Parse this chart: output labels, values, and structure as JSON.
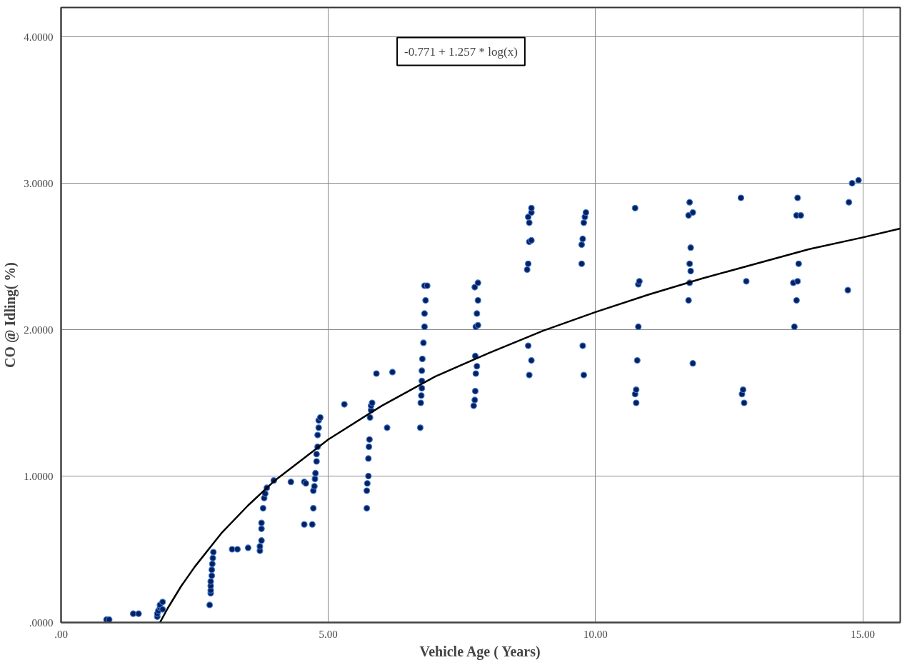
{
  "chart_data": {
    "type": "scatter",
    "xlabel": "Vehicle Age ( Years)",
    "ylabel": "CO @ Idling( %)",
    "annotations": [
      "-0.771 + 1.257 * log(x)"
    ],
    "xlim": [
      0,
      15.7
    ],
    "ylim": [
      0,
      4.2
    ],
    "xticks": [
      {
        "value": 0,
        "label": ".00"
      },
      {
        "value": 5,
        "label": "5.00"
      },
      {
        "value": 10,
        "label": "10.00"
      },
      {
        "value": 15,
        "label": "15.00"
      }
    ],
    "yticks": [
      {
        "value": 0,
        "label": ".0000"
      },
      {
        "value": 1,
        "label": "1.0000"
      },
      {
        "value": 2,
        "label": "2.0000"
      },
      {
        "value": 3,
        "label": "3.0000"
      },
      {
        "value": 4,
        "label": "4.0000"
      }
    ],
    "grid": true,
    "marker": "circle",
    "series": [
      {
        "color": "#0a1f5c",
        "x": [
          0.85,
          0.9,
          1.35,
          1.45,
          1.8,
          1.8,
          1.82,
          1.85,
          1.85,
          1.9,
          1.9,
          2.78,
          2.8,
          2.8,
          2.8,
          2.8,
          2.82,
          2.82,
          2.83,
          2.84,
          2.85,
          3.2,
          3.3,
          3.5,
          3.72,
          3.72,
          3.75,
          3.75,
          3.75,
          3.78,
          3.8,
          3.82,
          3.85,
          3.98,
          4.3,
          4.55,
          4.58,
          4.55,
          4.7,
          4.72,
          4.72,
          4.74,
          4.75,
          4.76,
          4.78,
          4.78,
          4.8,
          4.8,
          4.82,
          4.82,
          4.85,
          5.3,
          5.72,
          5.72,
          5.73,
          5.75,
          5.75,
          5.76,
          5.77,
          5.78,
          5.8,
          5.8,
          5.82,
          5.9,
          6.1,
          6.2,
          6.72,
          6.73,
          6.74,
          6.75,
          6.75,
          6.75,
          6.76,
          6.78,
          6.8,
          6.8,
          6.82,
          6.8,
          6.85,
          7.72,
          7.74,
          7.75,
          7.76,
          7.78,
          7.75,
          7.76,
          7.8,
          7.78,
          7.8,
          7.74,
          7.8,
          8.76,
          8.8,
          8.74,
          8.72,
          8.74,
          8.76,
          8.8,
          8.76,
          8.74,
          8.8,
          8.8,
          9.78,
          9.76,
          9.74,
          9.74,
          9.76,
          9.78,
          9.8,
          9.82,
          10.76,
          10.74,
          10.76,
          10.78,
          10.8,
          10.8,
          10.82,
          10.74,
          11.82,
          11.74,
          11.76,
          11.78,
          11.76,
          11.78,
          11.74,
          11.82,
          11.76,
          12.78,
          12.74,
          12.76,
          12.82,
          12.72,
          13.72,
          13.76,
          13.7,
          13.78,
          13.8,
          13.76,
          13.84,
          13.78,
          14.72,
          14.74,
          14.8,
          14.92
        ],
        "values": [
          0.02,
          0.02,
          0.06,
          0.06,
          0.04,
          0.06,
          0.08,
          0.1,
          0.12,
          0.14,
          0.09,
          0.12,
          0.2,
          0.22,
          0.25,
          0.28,
          0.32,
          0.36,
          0.4,
          0.44,
          0.48,
          0.5,
          0.5,
          0.51,
          0.49,
          0.52,
          0.56,
          0.64,
          0.68,
          0.78,
          0.85,
          0.88,
          0.92,
          0.97,
          0.96,
          0.96,
          0.95,
          0.67,
          0.67,
          0.78,
          0.9,
          0.93,
          0.98,
          1.02,
          1.1,
          1.15,
          1.2,
          1.28,
          1.33,
          1.38,
          1.4,
          1.49,
          0.78,
          0.9,
          0.95,
          1.0,
          1.12,
          1.2,
          1.25,
          1.4,
          1.45,
          1.48,
          1.5,
          1.7,
          1.33,
          1.71,
          1.33,
          1.5,
          1.55,
          1.6,
          1.65,
          1.72,
          1.8,
          1.91,
          2.02,
          2.11,
          2.2,
          2.3,
          2.3,
          1.48,
          1.52,
          1.58,
          1.7,
          1.75,
          1.82,
          2.02,
          2.03,
          2.11,
          2.2,
          2.29,
          2.32,
          1.69,
          1.79,
          1.89,
          2.41,
          2.45,
          2.6,
          2.61,
          2.73,
          2.77,
          2.8,
          2.83,
          1.69,
          1.89,
          2.45,
          2.58,
          2.62,
          2.73,
          2.77,
          2.8,
          1.5,
          1.56,
          1.59,
          1.79,
          2.02,
          2.31,
          2.33,
          2.83,
          1.77,
          2.2,
          2.32,
          2.4,
          2.45,
          2.56,
          2.78,
          2.8,
          2.87,
          1.5,
          1.56,
          1.59,
          2.33,
          2.9,
          2.02,
          2.2,
          2.32,
          2.33,
          2.45,
          2.78,
          2.78,
          2.9,
          2.27,
          2.87,
          3.0,
          3.02
        ]
      },
      {
        "type": "line",
        "marker": "none",
        "color": "#000000",
        "line_style": "solid",
        "x": [
          1.85,
          2,
          2.25,
          2.5,
          3,
          3.5,
          4,
          5,
          6,
          7,
          8,
          9,
          10,
          11,
          12,
          13,
          14,
          15,
          15.7
        ],
        "values": [
          0.0,
          0.1,
          0.25,
          0.38,
          0.61,
          0.8,
          0.97,
          1.25,
          1.48,
          1.68,
          1.84,
          1.99,
          2.12,
          2.24,
          2.35,
          2.45,
          2.55,
          2.63,
          2.69
        ]
      }
    ]
  }
}
